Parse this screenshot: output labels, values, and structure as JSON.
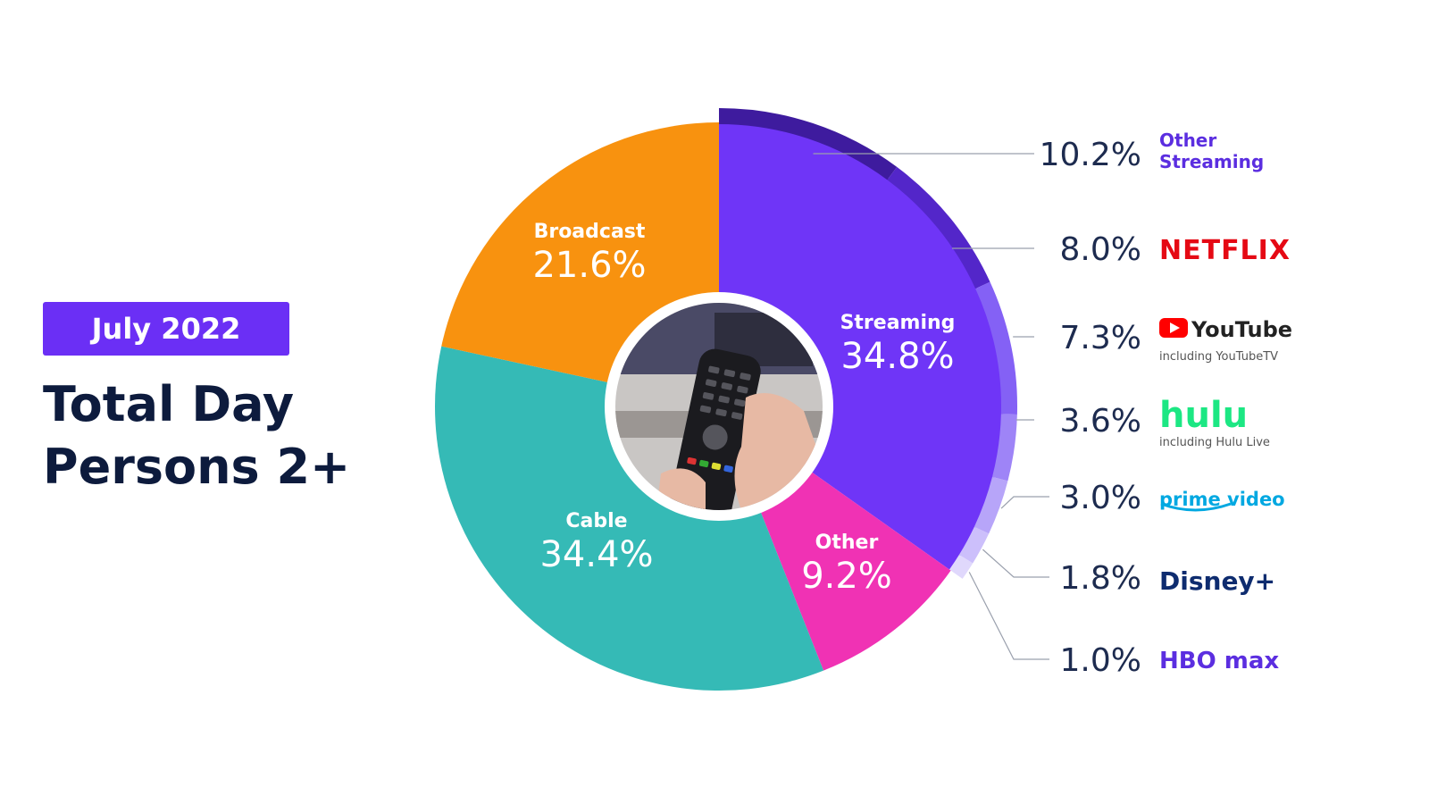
{
  "period": "July 2022",
  "title_line1": "Total Day",
  "title_line2": "Persons 2+",
  "colors": {
    "streaming": "#6f35f7",
    "other": "#f032b4",
    "cable": "#35bab6",
    "broadcast": "#f8920f",
    "accent": "#6b2ff5",
    "title": "#0d1b3d"
  },
  "chart_data": {
    "type": "pie",
    "slices": [
      {
        "name": "Streaming",
        "value": 34.8,
        "label": "34.8%"
      },
      {
        "name": "Other",
        "value": 9.2,
        "label": "9.2%"
      },
      {
        "name": "Cable",
        "value": 34.4,
        "label": "34.4%"
      },
      {
        "name": "Broadcast",
        "value": 21.6,
        "label": "21.6%"
      }
    ],
    "streaming_breakdown": [
      {
        "name": "Other Streaming",
        "value": 10.2,
        "label": "10.2%",
        "color": "#3e1b9e"
      },
      {
        "name": "NETFLIX",
        "value": 8.0,
        "label": "8.0%",
        "color": "#5326c9"
      },
      {
        "name": "YouTube",
        "sub": "including YouTubeTV",
        "value": 7.3,
        "label": "7.3%",
        "color": "#8461f5"
      },
      {
        "name": "hulu",
        "sub": "including Hulu Live",
        "value": 3.6,
        "label": "3.6%",
        "color": "#9e84f7"
      },
      {
        "name": "prime video",
        "value": 3.0,
        "label": "3.0%",
        "color": "#b7a5f9"
      },
      {
        "name": "Disney+",
        "value": 1.8,
        "label": "1.8%",
        "color": "#ccbffb"
      },
      {
        "name": "HBO max",
        "value": 1.0,
        "label": "1.0%",
        "color": "#e0d8fc"
      }
    ]
  }
}
